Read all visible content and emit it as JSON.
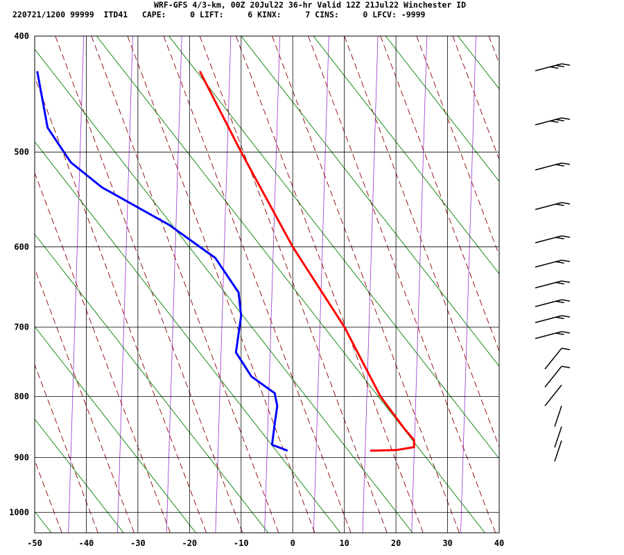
{
  "header": {
    "line1": "WRF-GFS 4/3-km, 00Z 20Jul22 36-hr Valid 12Z 21Jul22 Winchester ID",
    "line2": "220721/1200 99999  ITD41   CAPE:     0 LIFT:     6 KINX:     7 CINS:     0 LFCV: -9999"
  },
  "chart_data": {
    "type": "skew-t",
    "xlabel": "",
    "ylabel": "",
    "x_ticks": [
      -50,
      -40,
      -30,
      -20,
      -10,
      0,
      10,
      20,
      30,
      40
    ],
    "y_ticks": [
      400,
      500,
      600,
      700,
      800,
      900,
      1000
    ],
    "xlim": [
      -50,
      40
    ],
    "ylim": [
      1040,
      400
    ],
    "y_scale": "log-pressure",
    "grid": true,
    "series": [
      {
        "color": "#ff0000",
        "points": [
          {
            "p": 428,
            "x": -18
          },
          {
            "p": 500,
            "x": -10
          },
          {
            "p": 600,
            "x": 0
          },
          {
            "p": 700,
            "x": 10
          },
          {
            "p": 800,
            "x": 17
          },
          {
            "p": 850,
            "x": 21.5
          },
          {
            "p": 870,
            "x": 23.5
          },
          {
            "p": 882,
            "x": 23.5
          },
          {
            "p": 887,
            "x": 20
          },
          {
            "p": 888,
            "x": 15
          }
        ]
      },
      {
        "color": "#0000ff",
        "points": [
          {
            "p": 428,
            "x": -49.5
          },
          {
            "p": 477,
            "x": -47.5
          },
          {
            "p": 510,
            "x": -43
          },
          {
            "p": 535,
            "x": -37
          },
          {
            "p": 575,
            "x": -24
          },
          {
            "p": 613,
            "x": -15
          },
          {
            "p": 655,
            "x": -10.5
          },
          {
            "p": 685,
            "x": -10
          },
          {
            "p": 735,
            "x": -11
          },
          {
            "p": 770,
            "x": -8
          },
          {
            "p": 795,
            "x": -3.5
          },
          {
            "p": 815,
            "x": -3
          },
          {
            "p": 843,
            "x": -3.5
          },
          {
            "p": 878,
            "x": -4
          },
          {
            "p": 888,
            "x": -1
          }
        ]
      }
    ],
    "background_colors": {
      "isotherm": "#000000",
      "dry_adiabat": "#008000",
      "moist_adiabat": "#8b0000",
      "mixing_ratio": "#9932cc"
    }
  }
}
